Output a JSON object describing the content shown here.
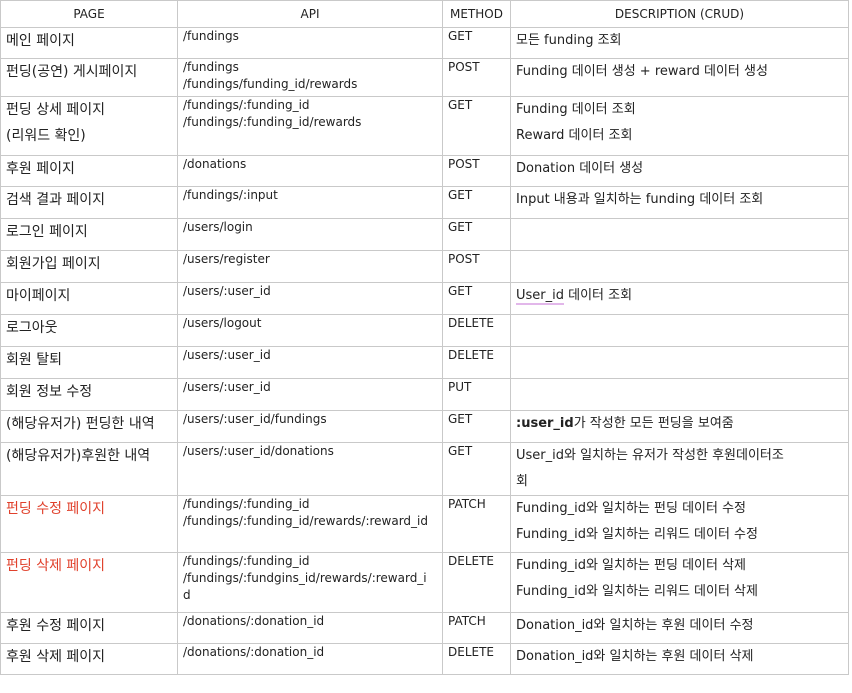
{
  "headers": {
    "page": "PAGE",
    "api": "API",
    "method": "METHOD",
    "description": "DESCRIPTION (CRUD)"
  },
  "rows": [
    {
      "page": [
        "메인 페이지"
      ],
      "api": [
        "/fundings"
      ],
      "method": "GET",
      "description": [
        "모든 funding 조회"
      ]
    },
    {
      "page": [
        "펀딩(공연) 게시페이지"
      ],
      "api": [
        "/fundings",
        "/fundings/funding_id/rewards"
      ],
      "method": "POST",
      "description": [
        "Funding 데이터 생성 + reward 데이터 생성"
      ]
    },
    {
      "page": [
        "펀딩 상세 페이지",
        "(리워드 확인)"
      ],
      "api": [
        "/fundings/:funding_id",
        "/fundings/:funding_id/rewards"
      ],
      "method": "GET",
      "description": [
        "Funding 데이터 조회",
        "Reward 데이터 조회"
      ]
    },
    {
      "page": [
        "후원 페이지"
      ],
      "api": [
        "/donations"
      ],
      "method": "POST",
      "description": [
        "Donation 데이터 생성"
      ]
    },
    {
      "page": [
        "검색 결과 페이지"
      ],
      "api": [
        "/fundings/:input"
      ],
      "method": "GET",
      "description": [
        "Input 내용과 일치하는 funding 데이터 조회"
      ]
    },
    {
      "page": [
        "로그인 페이지"
      ],
      "api": [
        "/users/login"
      ],
      "method": "GET",
      "description": []
    },
    {
      "page": [
        "회원가입 페이지"
      ],
      "api": [
        "/users/register"
      ],
      "method": "POST",
      "description": []
    },
    {
      "page": [
        "마이페이지"
      ],
      "api": [
        "/users/:user_id"
      ],
      "method": "GET",
      "description": [
        "User_id 데이터 조회"
      ]
    },
    {
      "page": [
        "로그아웃"
      ],
      "api": [
        "/users/logout"
      ],
      "method": "DELETE",
      "description": []
    },
    {
      "page": [
        "회원 탈퇴"
      ],
      "api": [
        "/users/:user_id"
      ],
      "method": "DELETE",
      "description": []
    },
    {
      "page": [
        "회원 정보 수정"
      ],
      "api": [
        "/users/:user_id"
      ],
      "method": "PUT",
      "description": []
    },
    {
      "page": [
        "(해당유저가) 펀딩한 내역"
      ],
      "api": [
        "/users/:user_id/fundings"
      ],
      "method": "GET",
      "description_bold": ":user_id",
      "description": [
        "가 작성한 모든 펀딩을 보여줌"
      ]
    },
    {
      "page": [
        "(해당유저가)후원한 내역"
      ],
      "api": [
        "/users/:user_id/donations"
      ],
      "method": "GET",
      "description": [
        "User_id와 일치하는 유저가 작성한 후원데이터조",
        "회"
      ]
    },
    {
      "page": [
        "펀딩 수정 페이지"
      ],
      "api": [
        "/fundings/:funding_id",
        "/fundings/:funding_id/rewards/:reward_id"
      ],
      "method": "PATCH",
      "description": [
        "Funding_id와 일치하는 펀딩 데이터 수정",
        "Funding_id와 일치하는 리워드 데이터 수정"
      ],
      "highlight": true
    },
    {
      "page": [
        "펀딩 삭제 페이지"
      ],
      "api": [
        "/fundings/:funding_id",
        "/fundings/:fundgins_id/rewards/:reward_i",
        "d"
      ],
      "method": "DELETE",
      "description": [
        "Funding_id와 일치하는 펀딩 데이터 삭제",
        "Funding_id와 일치하는 리워드 데이터 삭제"
      ],
      "highlight": true
    },
    {
      "page": [
        "후원 수정 페이지"
      ],
      "api": [
        "/donations/:donation_id"
      ],
      "method": "PATCH",
      "description": [
        "Donation_id와 일치하는 후원 데이터 수정"
      ]
    },
    {
      "page": [
        "후원 삭제 페이지"
      ],
      "api": [
        "/donations/:donation_id"
      ],
      "method": "DELETE",
      "description": [
        "Donation_id와 일치하는 후원 데이터 삭제"
      ]
    }
  ]
}
